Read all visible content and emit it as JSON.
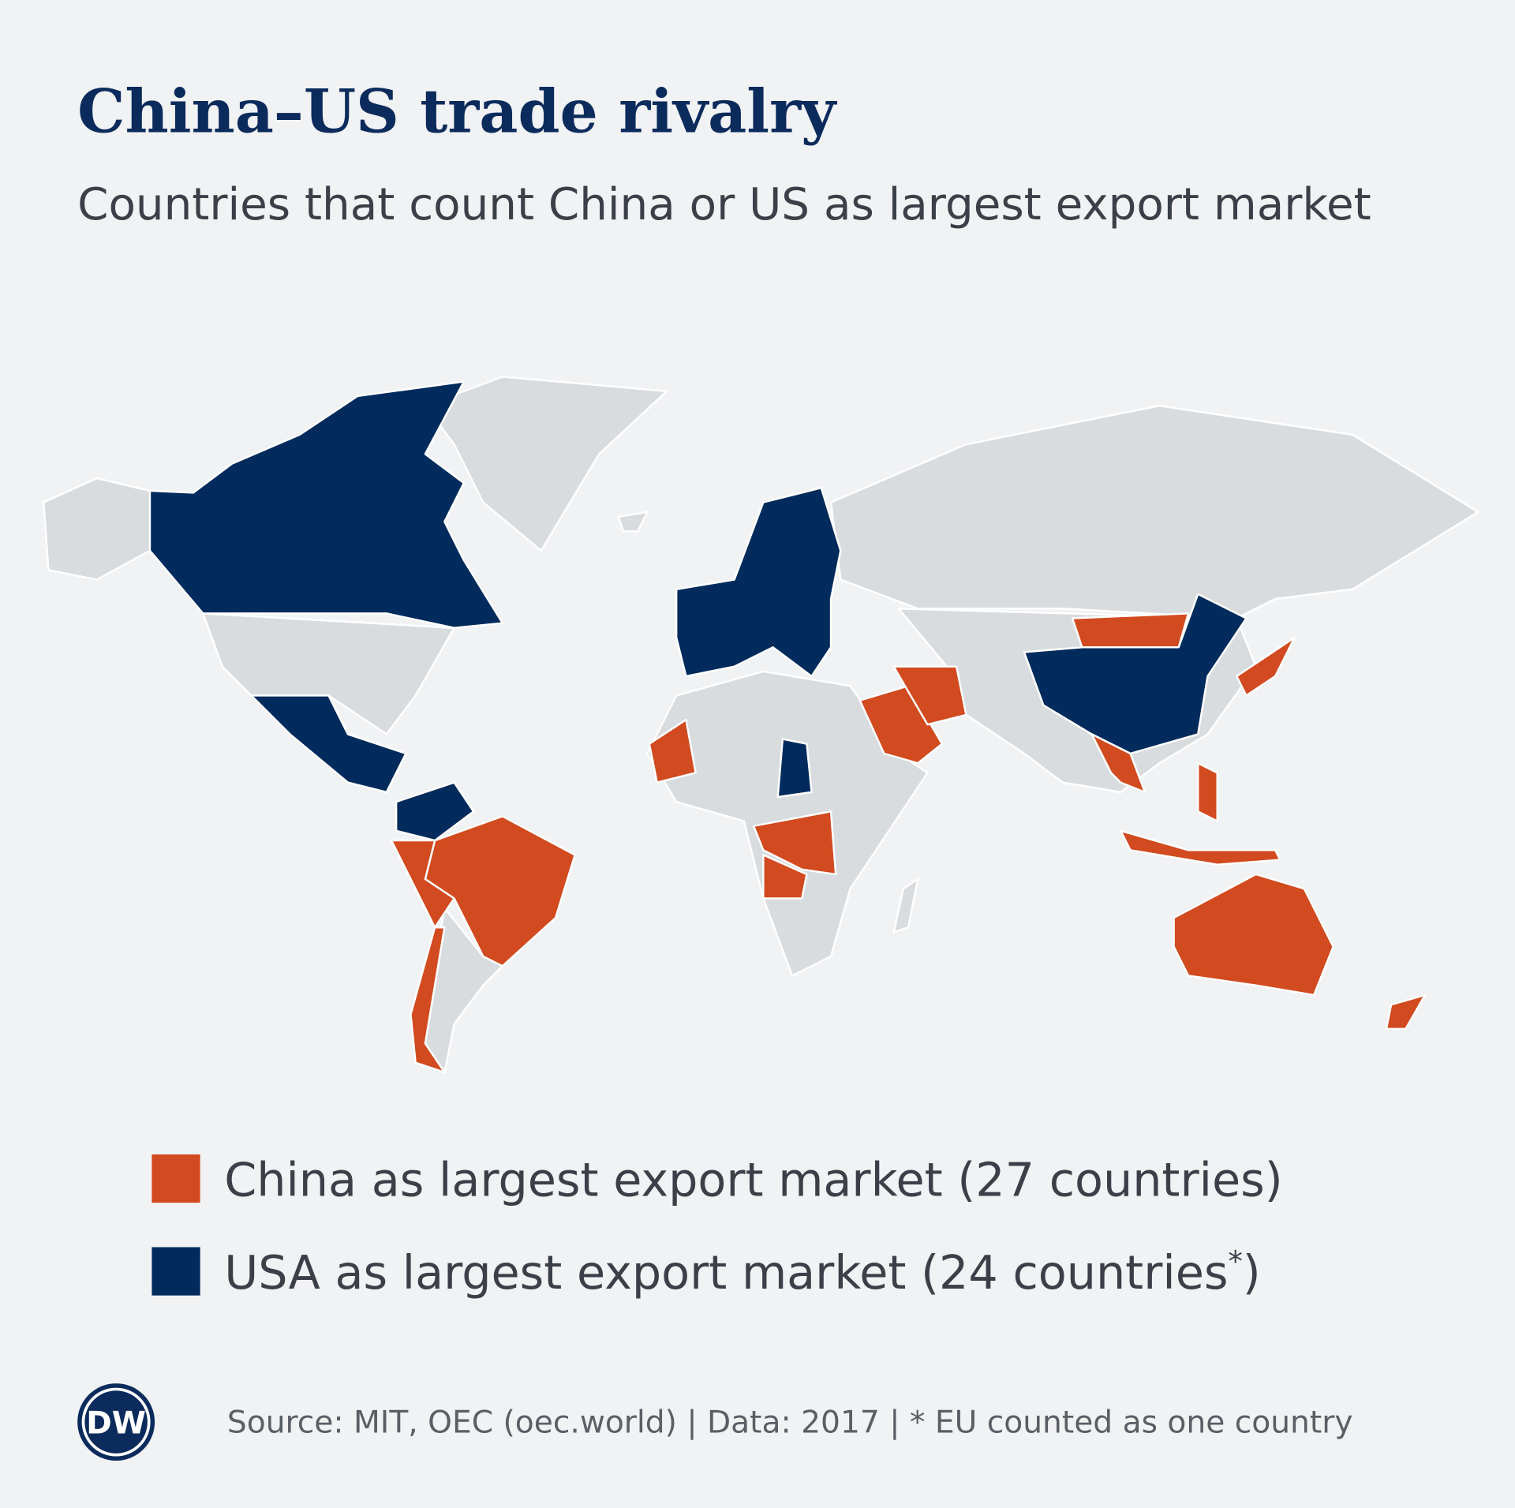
{
  "header": {
    "title": "China–US trade rivalry",
    "subtitle": "Countries that count China or US as largest export market"
  },
  "legend": {
    "items": [
      {
        "text": "China as largest export market (27 countries)",
        "color": "#d24a1f"
      },
      {
        "text": "USA as largest export market (24 countries",
        "superscript": "*",
        "suffix": ")",
        "color": "#002b5c"
      }
    ]
  },
  "footer": {
    "logo": "DW",
    "source": "Source: MIT, OEC (oec.world) | Data: 2017 | * EU counted as one country"
  }
}
